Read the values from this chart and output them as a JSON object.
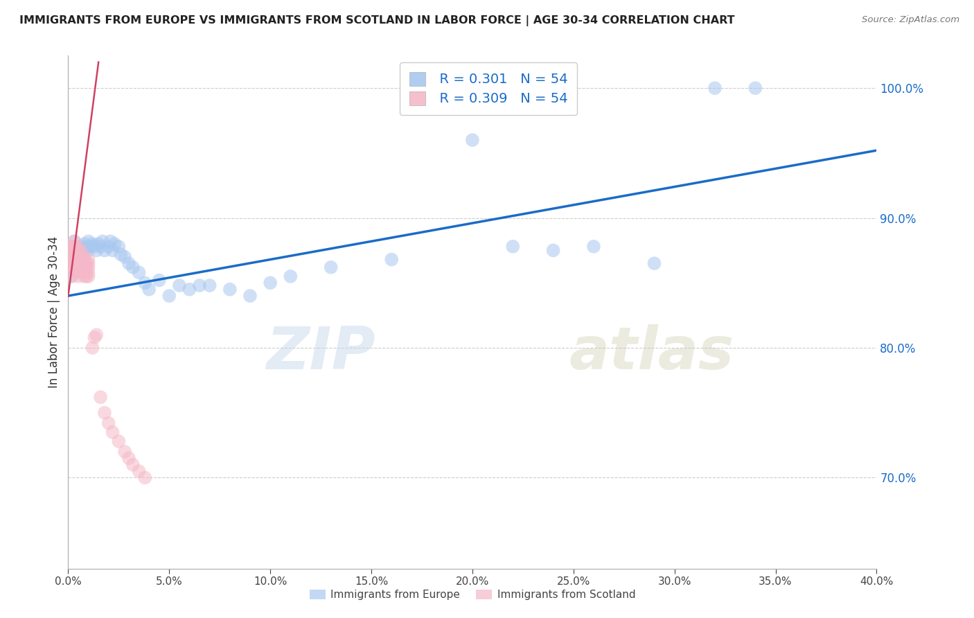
{
  "title": "IMMIGRANTS FROM EUROPE VS IMMIGRANTS FROM SCOTLAND IN LABOR FORCE | AGE 30-34 CORRELATION CHART",
  "source": "Source: ZipAtlas.com",
  "ylabel": "In Labor Force | Age 30-34",
  "xlim": [
    0.0,
    0.4
  ],
  "ylim": [
    0.63,
    1.025
  ],
  "x_ticks": [
    0.0,
    0.05,
    0.1,
    0.15,
    0.2,
    0.25,
    0.3,
    0.35,
    0.4
  ],
  "y_ticks": [
    0.7,
    0.8,
    0.9,
    1.0
  ],
  "blue_R": 0.301,
  "blue_N": 54,
  "pink_R": 0.309,
  "pink_N": 54,
  "blue_color": "#A8C8F0",
  "pink_color": "#F5B8C8",
  "blue_line_color": "#1A6CC8",
  "pink_line_color": "#D04060",
  "blue_x": [
    0.001,
    0.002,
    0.003,
    0.003,
    0.004,
    0.005,
    0.005,
    0.006,
    0.006,
    0.007,
    0.008,
    0.008,
    0.009,
    0.01,
    0.01,
    0.011,
    0.012,
    0.013,
    0.014,
    0.015,
    0.016,
    0.017,
    0.018,
    0.02,
    0.021,
    0.022,
    0.023,
    0.025,
    0.026,
    0.028,
    0.03,
    0.032,
    0.035,
    0.038,
    0.04,
    0.045,
    0.05,
    0.055,
    0.06,
    0.065,
    0.07,
    0.08,
    0.09,
    0.1,
    0.11,
    0.13,
    0.16,
    0.2,
    0.22,
    0.24,
    0.26,
    0.29,
    0.32,
    0.34
  ],
  "blue_y": [
    0.855,
    0.87,
    0.875,
    0.882,
    0.86,
    0.868,
    0.875,
    0.87,
    0.878,
    0.872,
    0.875,
    0.88,
    0.878,
    0.875,
    0.882,
    0.878,
    0.88,
    0.878,
    0.875,
    0.88,
    0.878,
    0.882,
    0.875,
    0.878,
    0.882,
    0.875,
    0.88,
    0.878,
    0.872,
    0.87,
    0.865,
    0.862,
    0.858,
    0.85,
    0.845,
    0.852,
    0.84,
    0.848,
    0.845,
    0.848,
    0.848,
    0.845,
    0.84,
    0.85,
    0.855,
    0.862,
    0.868,
    0.96,
    0.878,
    0.875,
    0.878,
    0.865,
    1.0,
    1.0
  ],
  "pink_x": [
    0.001,
    0.001,
    0.001,
    0.002,
    0.002,
    0.002,
    0.002,
    0.003,
    0.003,
    0.003,
    0.003,
    0.003,
    0.003,
    0.004,
    0.004,
    0.004,
    0.004,
    0.004,
    0.005,
    0.005,
    0.005,
    0.005,
    0.006,
    0.006,
    0.006,
    0.006,
    0.007,
    0.007,
    0.007,
    0.008,
    0.008,
    0.008,
    0.008,
    0.009,
    0.009,
    0.009,
    0.01,
    0.01,
    0.01,
    0.01,
    0.01,
    0.012,
    0.013,
    0.014,
    0.016,
    0.018,
    0.02,
    0.022,
    0.025,
    0.028,
    0.03,
    0.032,
    0.035,
    0.038
  ],
  "pink_y": [
    0.87,
    0.875,
    0.878,
    0.855,
    0.862,
    0.868,
    0.875,
    0.86,
    0.865,
    0.87,
    0.875,
    0.878,
    0.882,
    0.858,
    0.862,
    0.868,
    0.875,
    0.878,
    0.855,
    0.862,
    0.868,
    0.875,
    0.86,
    0.865,
    0.87,
    0.875,
    0.858,
    0.862,
    0.868,
    0.855,
    0.86,
    0.865,
    0.87,
    0.855,
    0.86,
    0.865,
    0.855,
    0.858,
    0.862,
    0.865,
    0.868,
    0.8,
    0.808,
    0.81,
    0.762,
    0.75,
    0.742,
    0.735,
    0.728,
    0.72,
    0.715,
    0.71,
    0.705,
    0.7
  ]
}
